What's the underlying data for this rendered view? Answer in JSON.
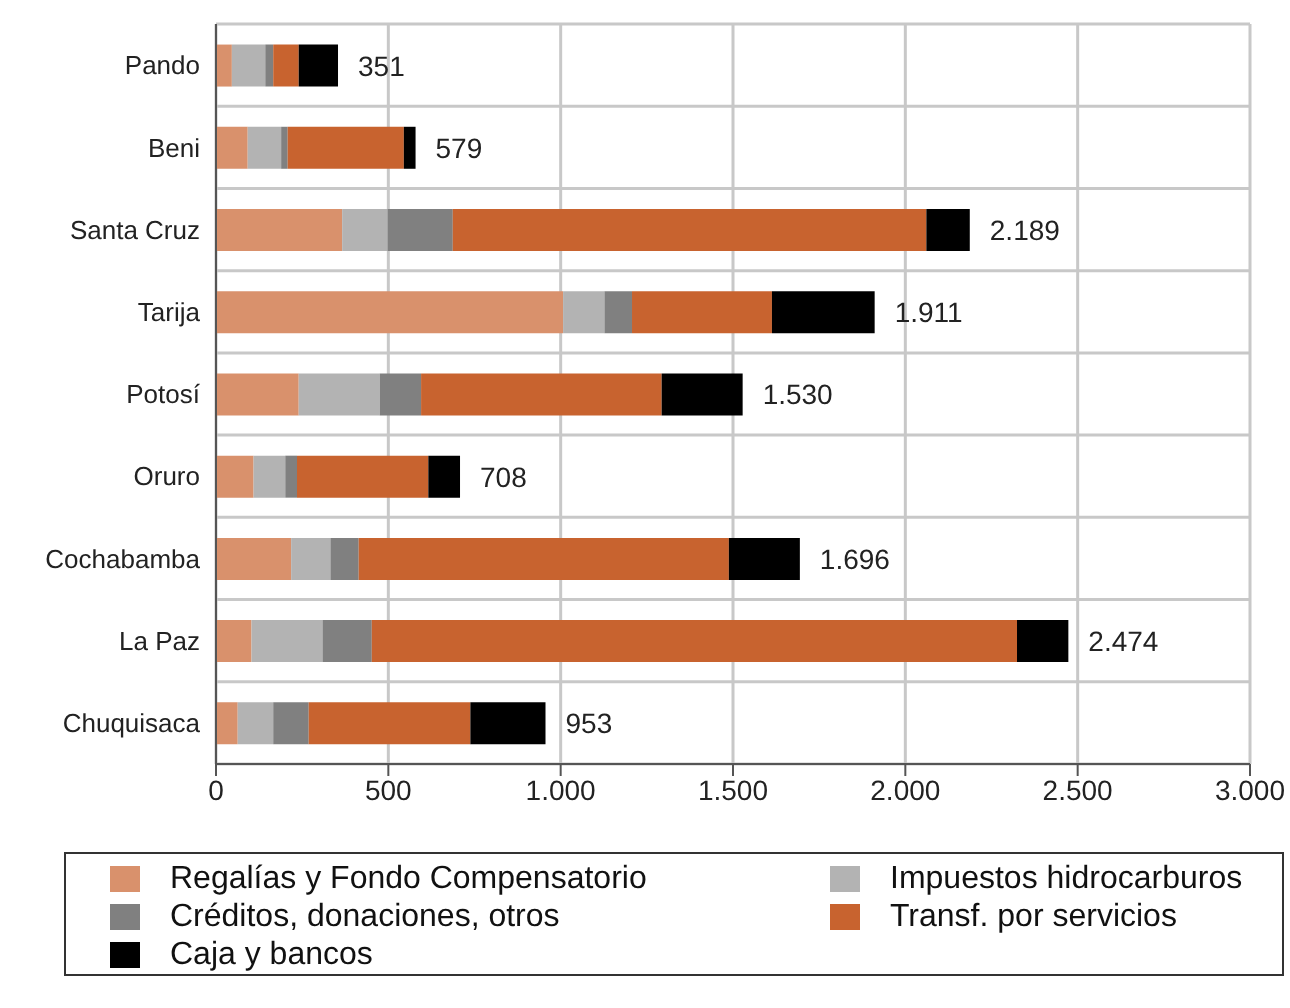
{
  "chart_data": {
    "type": "bar",
    "orientation": "horizontal",
    "stacked": true,
    "categories": [
      "Pando",
      "Beni",
      "Santa Cruz",
      "Tarija",
      "Potosí",
      "Oruro",
      "Cochabamba",
      "La Paz",
      "Chuquisaca"
    ],
    "series": [
      {
        "name": "Regalías y Fondo Compensatorio",
        "color": "#d9916c",
        "values": [
          46,
          92,
          366,
          1007,
          240,
          109,
          218,
          103,
          63
        ]
      },
      {
        "name": "Impuestos hidrocarburos",
        "color": "#b3b3b3",
        "values": [
          97,
          97,
          132,
          120,
          235,
          92,
          114,
          206,
          103
        ]
      },
      {
        "name": "Créditos, donaciones, otros",
        "color": "#808080",
        "values": [
          23,
          19,
          189,
          80,
          120,
          34,
          82,
          143,
          103
        ]
      },
      {
        "name": "Transf. por servicios",
        "color": "#c8632f",
        "values": [
          74,
          337,
          1374,
          406,
          698,
          381,
          1074,
          1872,
          469
        ]
      },
      {
        "name": "Caja y bancos",
        "color": "#000000",
        "values": [
          114,
          34,
          126,
          298,
          235,
          92,
          206,
          149,
          218
        ]
      }
    ],
    "totals": [
      "351",
      "579",
      "2.189",
      "1.911",
      "1.530",
      "708",
      "1.696",
      "2.474",
      "953"
    ],
    "xlim": [
      0,
      3000
    ],
    "xticks": [
      0,
      500,
      {
        "value": 1000,
        "label": "1.000"
      },
      {
        "value": 1500,
        "label": "1.500"
      },
      {
        "value": 2000,
        "label": "2.000"
      },
      {
        "value": 2500,
        "label": "2.500"
      },
      {
        "value": 3000,
        "label": "3.000"
      }
    ],
    "grid": true,
    "legend": "bottom"
  }
}
